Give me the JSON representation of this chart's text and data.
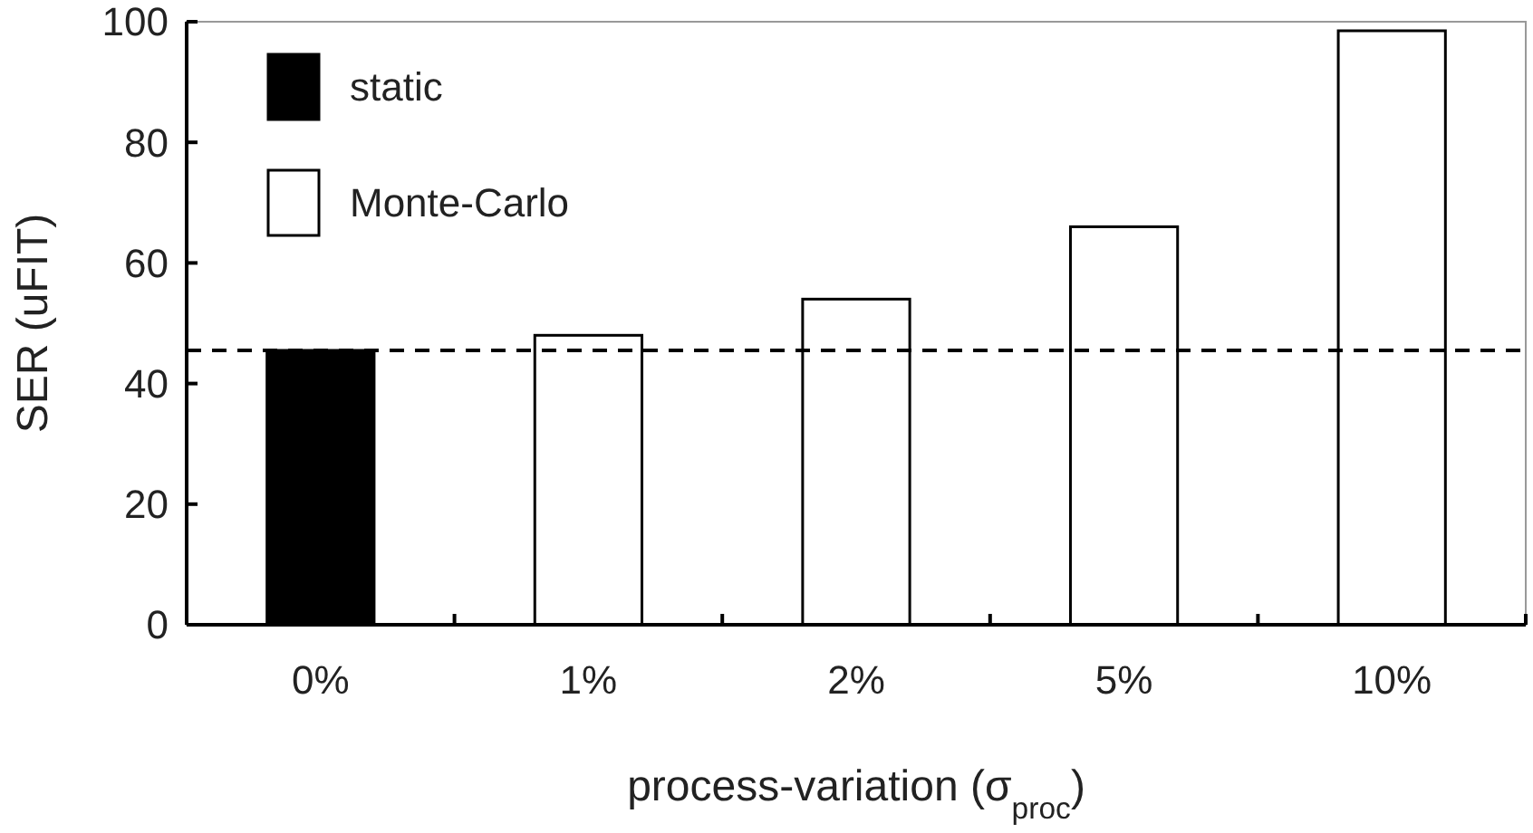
{
  "chart_data": {
    "type": "bar",
    "stacked": true,
    "categories": [
      "0%",
      "1%",
      "2%",
      "5%",
      "10%"
    ],
    "series": [
      {
        "name": "static",
        "color": "#000000",
        "values": [
          45.5,
          null,
          null,
          null,
          null
        ]
      },
      {
        "name": "Monte-Carlo",
        "color": "#ffffff",
        "values": [
          null,
          48,
          54,
          66,
          98.5
        ]
      }
    ],
    "xlabel": "process-variation (σ$_{proc}$)",
    "ylabel": "SER (uFIT)",
    "ylim": [
      0,
      100
    ],
    "yticks": [
      0,
      20,
      40,
      60,
      80,
      100
    ],
    "ref_lines": [
      {
        "axis": "y",
        "value": 45.5,
        "color": "#000000",
        "line_style": "dashed"
      }
    ],
    "legend": "top left"
  }
}
